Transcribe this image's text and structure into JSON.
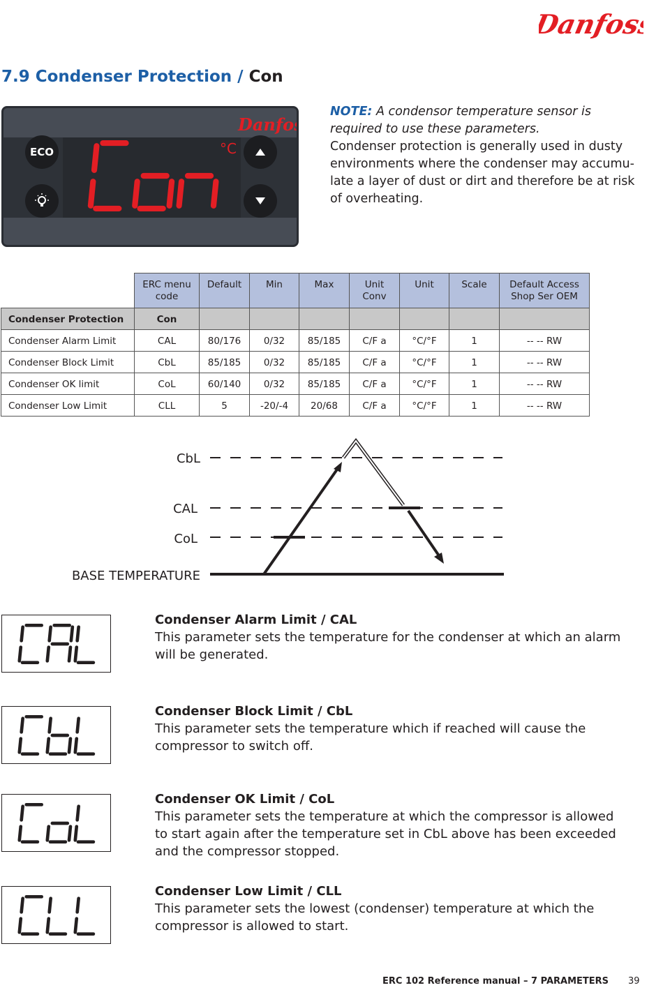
{
  "brand": "Danfoss",
  "title": {
    "section": "7.9 Condenser Protection / ",
    "code": "Con"
  },
  "controller": {
    "display": "Con",
    "unit": "°C",
    "eco_label": "ECO",
    "light_icon": "lightbulb-icon",
    "up_icon": "triangle-up-icon",
    "down_icon": "triangle-down-icon",
    "accent": "#e31e24"
  },
  "note": {
    "label": "NOTE:",
    "italic": " A condensor temperature sensor is required to use these parameters.",
    "body": "Condenser protection is generally used in dusty environments where the condenser may accumu-late a layer of dust or dirt and therefore be at risk of overheating."
  },
  "table": {
    "headers": [
      "ERC menu code",
      "Default",
      "Min",
      "Max",
      "Unit Conv",
      "Unit",
      "Scale",
      "Default Access Shop Ser OEM"
    ],
    "group": {
      "name": "Condenser Protection",
      "code": "Con"
    },
    "rows": [
      [
        "Condenser Alarm Limit",
        "CAL",
        "80/176",
        "0/32",
        "85/185",
        "C/F a",
        "°C/°F",
        "1",
        "-- -- RW"
      ],
      [
        "Condenser Block Limit",
        "CbL",
        "85/185",
        "0/32",
        "85/185",
        "C/F a",
        "°C/°F",
        "1",
        "-- -- RW"
      ],
      [
        "Condenser OK limit",
        "CoL",
        "60/140",
        "0/32",
        "85/185",
        "C/F a",
        "°C/°F",
        "1",
        "-- -- RW"
      ],
      [
        "Condenser Low Limit",
        "CLL",
        "5",
        "-20/-4",
        "20/68",
        "C/F a",
        "°C/°F",
        "1",
        "-- -- RW"
      ]
    ]
  },
  "diagram": {
    "labels": {
      "cbl": "CbL",
      "cal": "CAL",
      "col": "CoL",
      "base": "BASE TEMPERATURE"
    }
  },
  "params": [
    {
      "display": "CAL",
      "title": "Condenser Alarm Limit / CAL",
      "text": "This parameter sets the temperature for the condenser at which an alarm will be generated."
    },
    {
      "display": "CbL",
      "title": "Condenser Block Limit / CbL",
      "text": "This parameter sets the temperature which if reached will cause the compressor to switch off."
    },
    {
      "display": "CoL",
      "title": "Condenser OK Limit / CoL",
      "text": "This parameter sets the temperature at which the compressor is allowed to start again after the temperature set in CbL above has been exceeded and the compressor stopped."
    },
    {
      "display": "CLL",
      "title": "Condenser Low Limit / CLL",
      "text": "This parameter sets the lowest (condenser) temperature at which the compressor is allowed to start."
    }
  ],
  "footer": {
    "text": "ERC 102 Reference manual – 7 PARAMETERS",
    "page": "39"
  }
}
